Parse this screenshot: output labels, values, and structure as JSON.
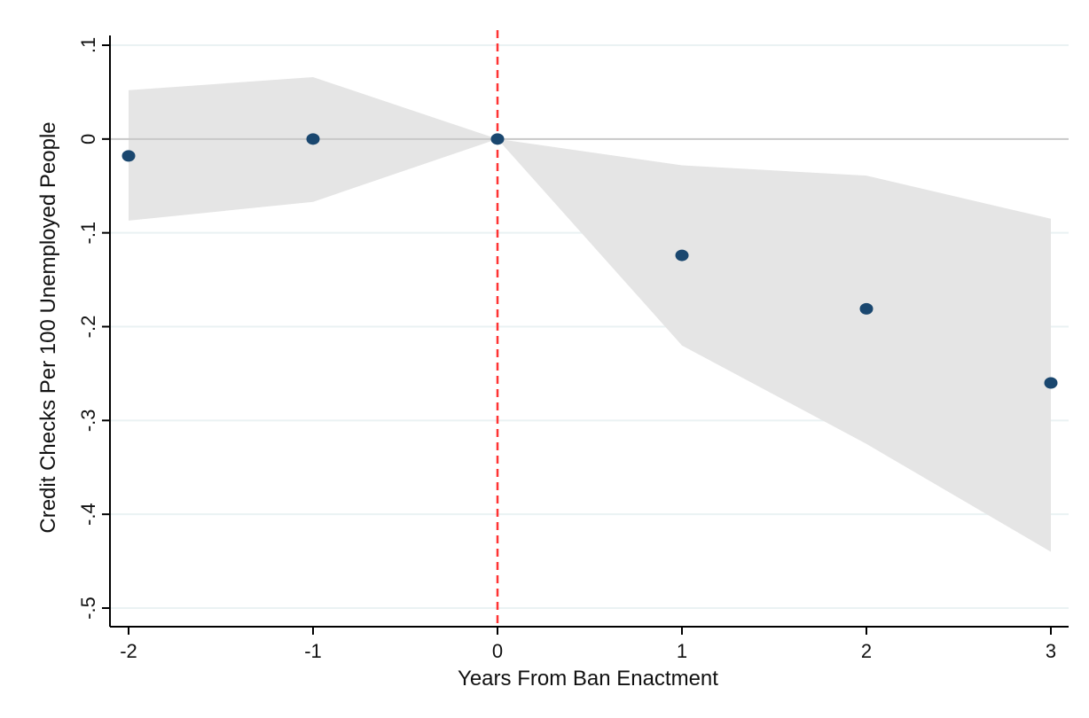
{
  "chart_data": {
    "type": "scatter",
    "xlabel": "Years From Ban Enactment",
    "ylabel": "Credit Checks Per 100 Unemployed People",
    "xlim": [
      -2,
      3
    ],
    "ylim": [
      -0.5,
      0.1
    ],
    "x_ticks": [
      -2,
      -1,
      0,
      1,
      2,
      3
    ],
    "x_tick_labels": [
      "-2",
      "-1",
      "0",
      "1",
      "2",
      "3"
    ],
    "y_ticks": [
      0.1,
      0,
      -0.1,
      -0.2,
      -0.3,
      -0.4,
      -0.5
    ],
    "y_tick_labels": [
      ".1",
      "0",
      "-.1",
      "-.2",
      "-.3",
      "-.4",
      "-.5"
    ],
    "grid": true,
    "reference_lines": {
      "horizontal_y": 0,
      "vertical_x": 0
    },
    "series": [
      {
        "x": [
          -2,
          -1,
          0,
          1,
          2,
          3
        ],
        "estimate": [
          -0.018,
          0.0,
          0.0,
          -0.124,
          -0.181,
          -0.26
        ],
        "ci_upper": [
          0.052,
          0.066,
          0.0,
          -0.028,
          -0.039,
          -0.085
        ],
        "ci_lower": [
          -0.087,
          -0.067,
          0.0,
          -0.22,
          -0.325,
          -0.44
        ]
      }
    ],
    "colors": {
      "point": "#1a476f",
      "ci_band": "#e5e5e5",
      "grid": "#eaf2f3",
      "zero_line": "#c8c8c8",
      "event_line": "#ff3333",
      "axis": "#000000"
    }
  }
}
